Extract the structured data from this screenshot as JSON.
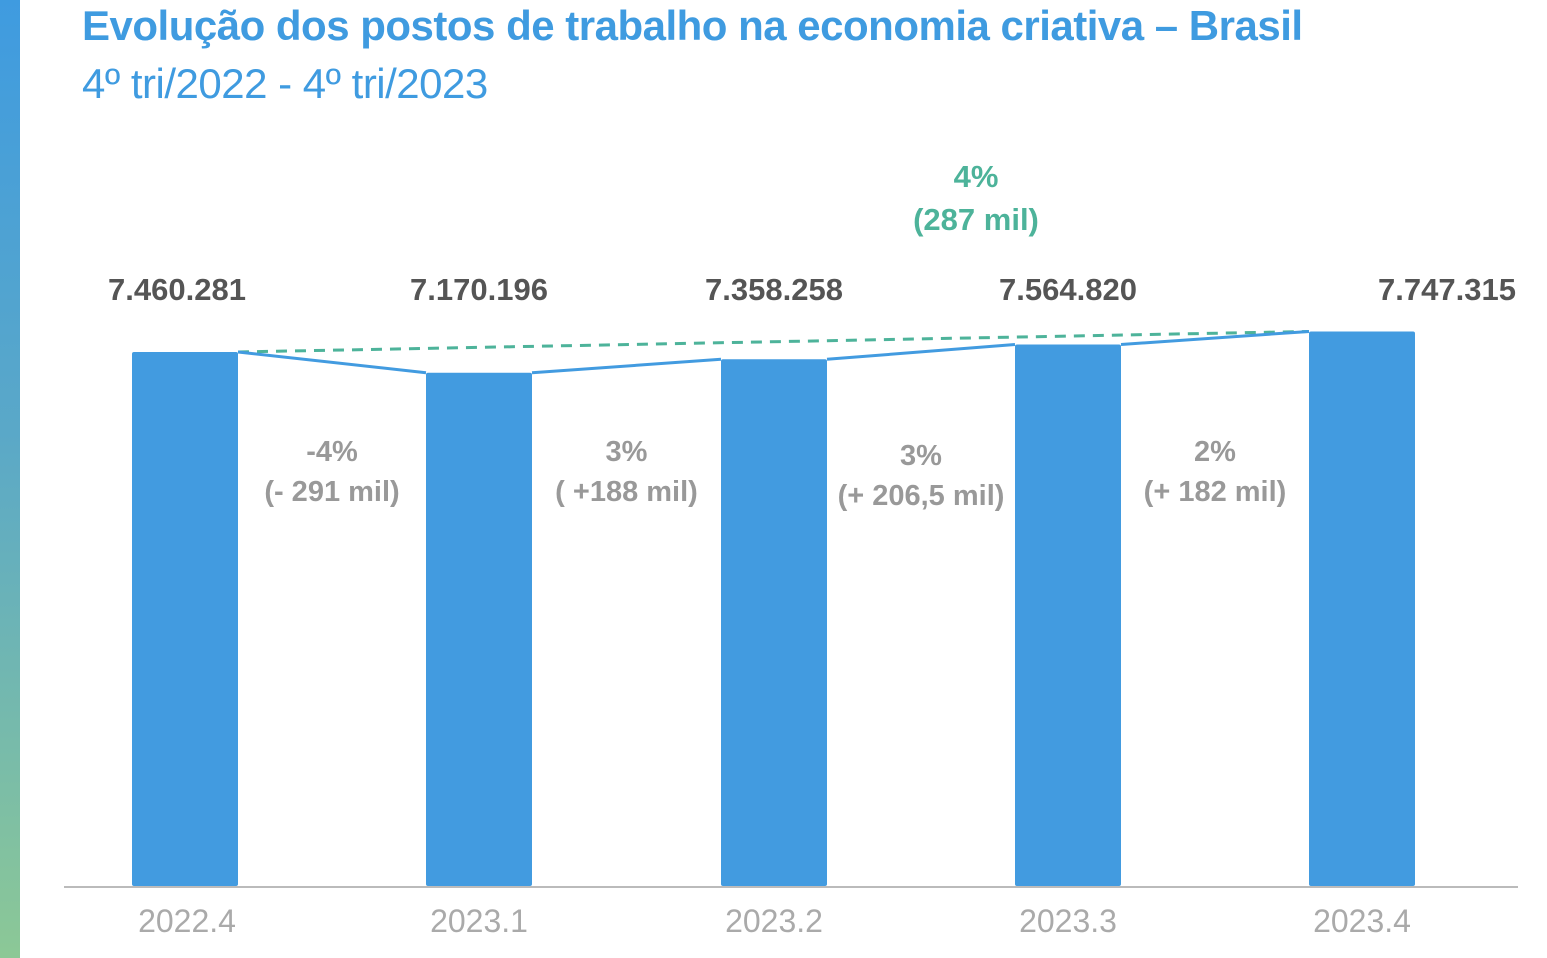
{
  "title": "Evolução dos postos de trabalho na economia criativa – Brasil",
  "subtitle": "4º tri/2022 - 4º tri/2023",
  "chart_data": {
    "type": "bar",
    "categories": [
      "2022.4",
      "2023.1",
      "2023.2",
      "2023.3",
      "2023.4"
    ],
    "values": [
      7460281,
      7170196,
      7358258,
      7564820,
      7747315
    ],
    "value_labels": [
      "7.460.281",
      "7.170.196",
      "7.358.258",
      "7.564.820",
      "7.747.315"
    ],
    "changes": [
      {
        "pct": "-4%",
        "abs": "(- 291 mil)"
      },
      {
        "pct": "3%",
        "abs": "( +188  mil)"
      },
      {
        "pct": "3%",
        "abs": "(+  206,5 mil)"
      },
      {
        "pct": "2%",
        "abs": "(+  182 mil)"
      }
    ],
    "total_change": {
      "pct": "4%",
      "abs": "(287 mil)"
    },
    "colors": {
      "bar": "#429be0",
      "line": "#429be0",
      "trend": "#4db39a",
      "value_label": "#555555",
      "change_label": "#999999",
      "axis_label": "#aaaaaa",
      "axis": "#bbbbbb"
    },
    "grid": false,
    "legend": "none"
  }
}
